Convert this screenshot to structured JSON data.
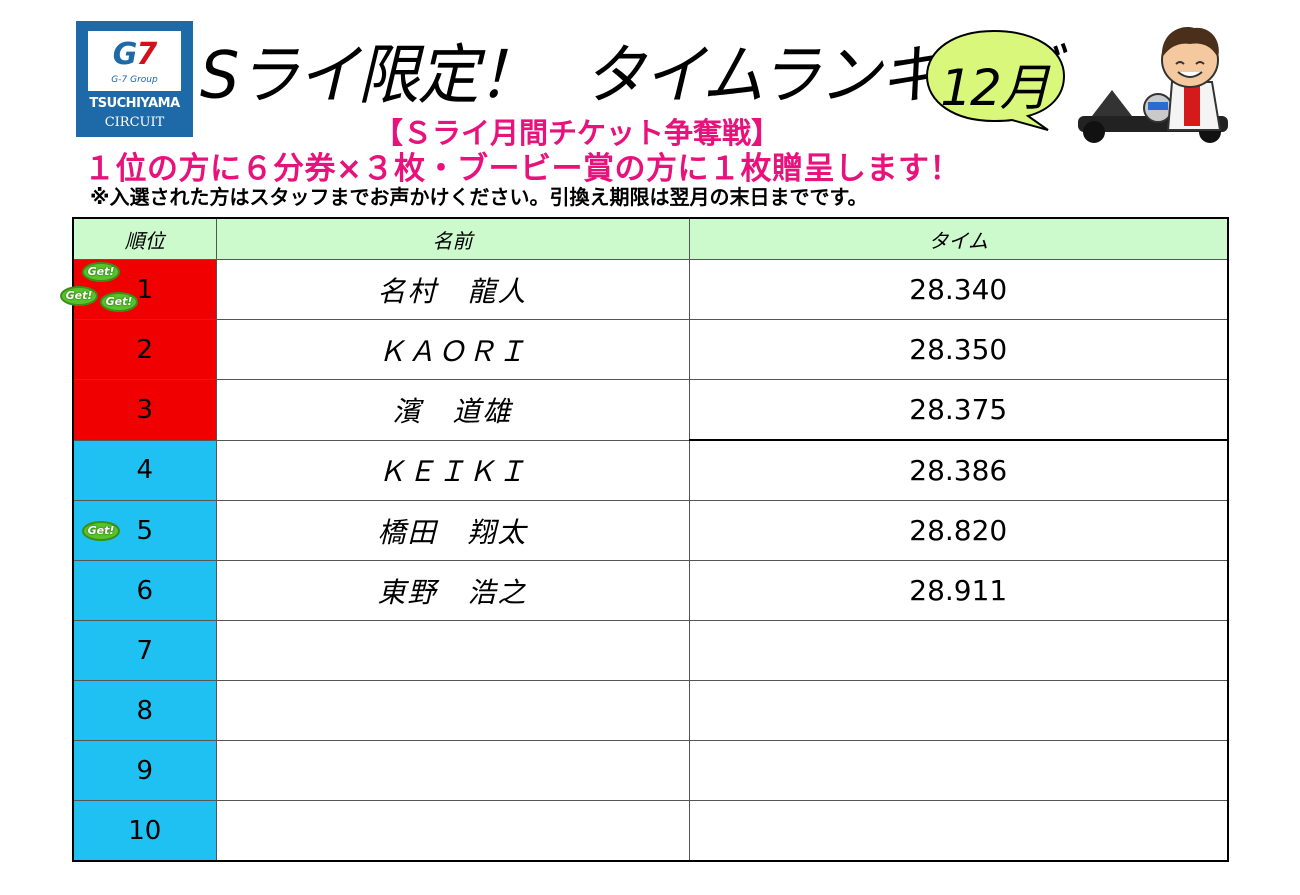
{
  "logo": {
    "mark_g": "G",
    "mark_7": "7",
    "group": "G-7 Group",
    "name": "TSUCHIYAMA",
    "circuit": "CIRCUIT"
  },
  "header": {
    "title_part1": "Sライ限定！",
    "title_part2": "タイムランキング",
    "month": "12月",
    "campaign": "【Ｓライ月間チケット争奪戦】",
    "prize": "１位の方に６分券×３枚・ブービー賞の方に１枚贈呈します！",
    "note": "※入選された方はスタッフまでお声かけください。引換え期限は翌月の末日までです。"
  },
  "badge_label": "Get!",
  "table": {
    "headers": {
      "rank": "順位",
      "name": "名前",
      "time": "タイム"
    },
    "rows": [
      {
        "rank": "1",
        "name": "名村　龍人",
        "time": "28.340",
        "color": "red",
        "get_badges": 3
      },
      {
        "rank": "2",
        "name": "ＫＡＯＲＩ",
        "time": "28.350",
        "color": "red",
        "get_badges": 0
      },
      {
        "rank": "3",
        "name": "濱　道雄",
        "time": "28.375",
        "color": "red",
        "get_badges": 0
      },
      {
        "rank": "4",
        "name": "ＫＥＩＫＩ",
        "time": "28.386",
        "color": "blue",
        "get_badges": 0
      },
      {
        "rank": "5",
        "name": "橋田　翔太",
        "time": "28.820",
        "color": "blue",
        "get_badges": 1
      },
      {
        "rank": "6",
        "name": "東野　浩之",
        "time": "28.911",
        "color": "blue",
        "get_badges": 0
      },
      {
        "rank": "7",
        "name": "",
        "time": "",
        "color": "blue",
        "get_badges": 0
      },
      {
        "rank": "8",
        "name": "",
        "time": "",
        "color": "blue",
        "get_badges": 0
      },
      {
        "rank": "9",
        "name": "",
        "time": "",
        "color": "blue",
        "get_badges": 0
      },
      {
        "rank": "10",
        "name": "",
        "time": "",
        "color": "blue",
        "get_badges": 0
      }
    ]
  },
  "colors": {
    "top_rank": "#f00000",
    "other_rank": "#1ec1f1",
    "header_bg": "#ccfacc",
    "accent_pink": "#e8127d",
    "logo_blue": "#1e6aa8",
    "bubble_green": "#d9f77a"
  },
  "icons": {
    "character": "kart-driver-mascot-icon",
    "badge": "get-badge-icon"
  }
}
